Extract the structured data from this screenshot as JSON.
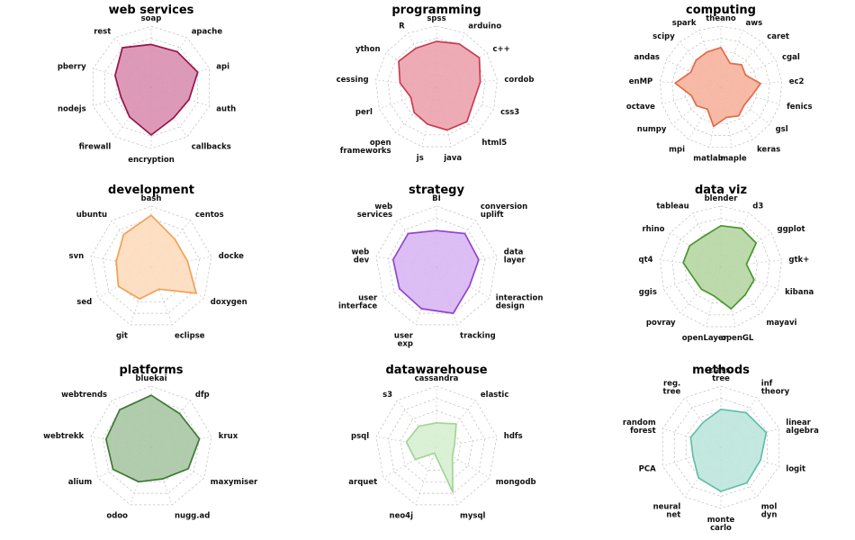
{
  "chart_data": [
    {
      "type": "radar",
      "title": "web services",
      "color": "#99134b",
      "fill": "#d88fb0",
      "axes": [
        "soap",
        "apache",
        "api",
        "auth",
        "callbacks",
        "encryption",
        "firewall",
        "nodejs",
        "pberry",
        "rest"
      ],
      "values": [
        0.7,
        0.72,
        0.8,
        0.65,
        0.62,
        0.78,
        0.6,
        0.52,
        0.62,
        0.8
      ]
    },
    {
      "type": "radar",
      "title": "programming",
      "color": "#cc3a4f",
      "fill": "#eba2ad",
      "axes": [
        "spss",
        "arduino",
        "c++",
        "cordob",
        "css3",
        "html5",
        "java",
        "js",
        "open\nframeworks",
        "perl",
        "cessing",
        "ython",
        "R"
      ],
      "values": [
        0.75,
        0.8,
        0.85,
        0.72,
        0.65,
        0.75,
        0.72,
        0.62,
        0.55,
        0.45,
        0.6,
        0.75,
        0.72
      ]
    },
    {
      "type": "radar",
      "title": "computing",
      "color": "#e46a47",
      "fill": "#f6b39c",
      "axes": [
        "theano",
        "aws",
        "caret",
        "cgal",
        "ec2",
        "fenics",
        "gsl",
        "keras",
        "maple",
        "matlab",
        "mpi",
        "numpy",
        "octave",
        "enMP",
        "andas",
        "scipy",
        "spark"
      ],
      "values": [
        0.65,
        0.42,
        0.5,
        0.45,
        0.65,
        0.52,
        0.48,
        0.55,
        0.5,
        0.65,
        0.42,
        0.5,
        0.5,
        0.75,
        0.55,
        0.6,
        0.62
      ]
    },
    {
      "type": "radar",
      "title": "development",
      "color": "#f1a254",
      "fill": "#fddcbc",
      "axes": [
        "bash",
        "centos",
        "docke",
        "doxygen",
        "eclipse",
        "git",
        "sed",
        "svn",
        "ubuntu"
      ],
      "values": [
        0.85,
        0.6,
        0.6,
        0.85,
        0.38,
        0.55,
        0.62,
        0.58,
        0.7
      ]
    },
    {
      "type": "radar",
      "title": "strategy",
      "color": "#9144d0",
      "fill": "#d8b6f3",
      "axes": [
        "BI",
        "conversion\nuplift",
        "data\nlayer",
        "interaction\ndesign",
        "tracking",
        "user\nexp",
        "user\ninterface",
        "web\ndev",
        "web\nservices"
      ],
      "values": [
        0.6,
        0.72,
        0.7,
        0.62,
        0.8,
        0.72,
        0.7,
        0.72,
        0.72
      ]
    },
    {
      "type": "radar",
      "title": "data viz",
      "color": "#4a962f",
      "fill": "#b5d6a2",
      "axes": [
        "blender",
        "d3",
        "ggplot",
        "gtk+",
        "kibana",
        "mayavi",
        "openGL",
        "openLayer",
        "povray",
        "ggis",
        "qt4",
        "rhino",
        "tableau"
      ],
      "values": [
        0.68,
        0.72,
        0.7,
        0.42,
        0.58,
        0.6,
        0.7,
        0.48,
        0.48,
        0.48,
        0.62,
        0.62,
        0.58
      ]
    },
    {
      "type": "radar",
      "title": "platforms",
      "color": "#3d7a33",
      "fill": "#a9c7a3",
      "axes": [
        "bluekai",
        "dfp",
        "krux",
        "maxymiser",
        "nugg.ad",
        "odoo",
        "alium",
        "webtrekk",
        "webtrends"
      ],
      "values": [
        0.85,
        0.72,
        0.8,
        0.7,
        0.55,
        0.6,
        0.72,
        0.75,
        0.8
      ]
    },
    {
      "type": "radar",
      "title": "datawarehouse",
      "color": "#a2d596",
      "fill": "#d7efd1",
      "axes": [
        "cassandra",
        "elastic",
        "hdfs",
        "mongodb",
        "mysql",
        "neo4j",
        "arquet",
        "psql",
        "s3"
      ],
      "values": [
        0.4,
        0.5,
        0.3,
        0.3,
        0.78,
        0.1,
        0.4,
        0.5,
        0.45
      ]
    },
    {
      "type": "radar",
      "title": "methods",
      "color": "#63bea7",
      "fill": "#bde6dc",
      "axes": [
        "class.\ntree",
        "inf\ntheory",
        "linear\nalgebra",
        "logit",
        "mol\ndyn",
        "monte\ncarlo",
        "neural\nnet",
        "PCA",
        "random\nforest",
        "reg.\ntree"
      ],
      "values": [
        0.62,
        0.7,
        0.78,
        0.68,
        0.72,
        0.72,
        0.62,
        0.48,
        0.52,
        0.5
      ]
    }
  ]
}
